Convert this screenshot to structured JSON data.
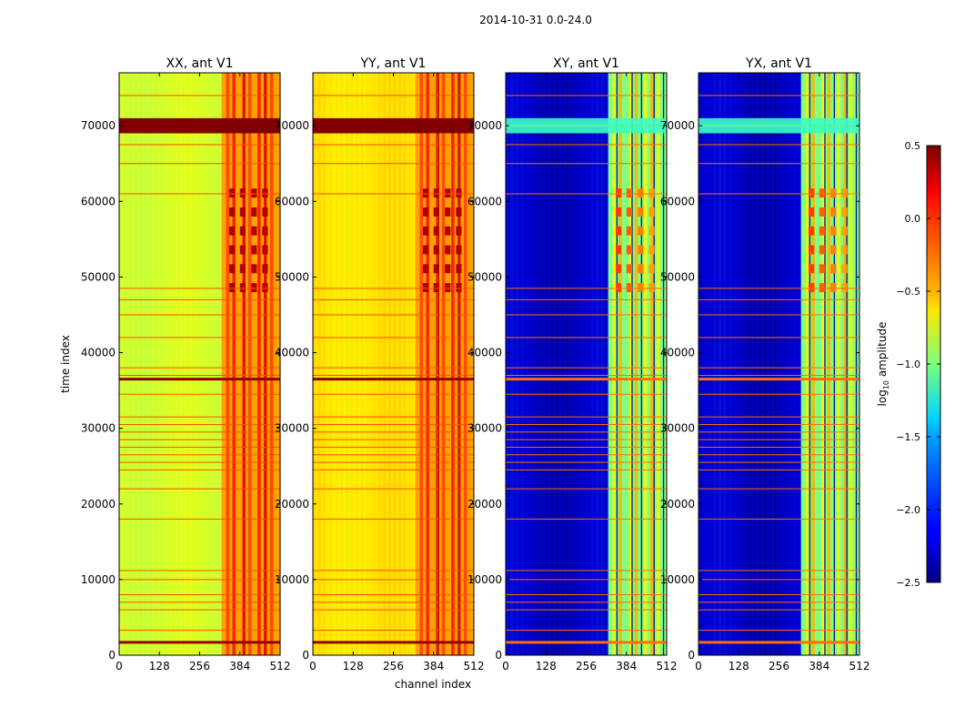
{
  "chart_data": {
    "type": "heatmap",
    "suptitle": "2014-10-31 0.0-24.0",
    "xlabel": "channel index",
    "ylabel": "time index",
    "xlim": [
      0,
      512
    ],
    "ylim": [
      0,
      77000
    ],
    "xticks": [
      0,
      128,
      256,
      384,
      512
    ],
    "yticks": [
      0,
      10000,
      20000,
      30000,
      40000,
      50000,
      60000,
      70000
    ],
    "colormap": "jet",
    "colorbar": {
      "label": "log₁₀ amplitude",
      "label_main": "log",
      "label_sub": "10",
      "label_tail": " amplitude",
      "range": [
        -2.5,
        0.5
      ],
      "ticks": [
        0.5,
        0.0,
        -0.5,
        -1.0,
        -1.5,
        -2.0,
        -2.5
      ],
      "tick_labels": [
        "0.5",
        "0.0",
        "−0.5",
        "−1.0",
        "−1.5",
        "−2.0",
        "−2.5"
      ]
    },
    "panels": [
      {
        "title": "XX, ant V1",
        "baseline_log_amplitude": -0.75,
        "rfi_band_channels": [
          326,
          512
        ]
      },
      {
        "title": "YY, ant V1",
        "baseline_log_amplitude": -0.55,
        "rfi_band_channels": [
          326,
          512
        ]
      },
      {
        "title": "XY, ant V1",
        "baseline_log_amplitude": -2.3,
        "rfi_band_channels": [
          326,
          512
        ]
      },
      {
        "title": "YX, ant V1",
        "baseline_log_amplitude": -2.3,
        "rfi_band_channels": [
          326,
          512
        ]
      }
    ],
    "flagged_time_rows": [
      1700,
      3300,
      6000,
      7000,
      8000,
      10000,
      11200,
      18000,
      22000,
      24500,
      25500,
      26500,
      27500,
      28500,
      29500,
      30500,
      31500,
      34500,
      36500,
      37000,
      38000,
      42000,
      45000,
      47000,
      48500,
      61000,
      65000,
      67500,
      70000,
      74000
    ]
  }
}
